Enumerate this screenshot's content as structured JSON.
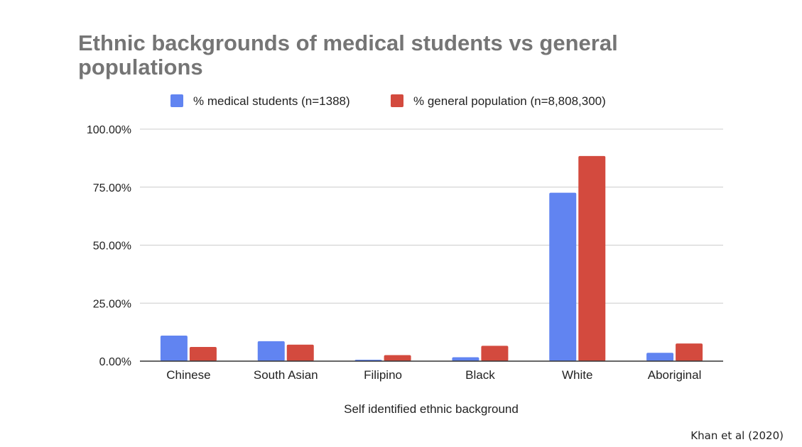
{
  "chart_data": {
    "type": "bar",
    "title": "Ethnic backgrounds of medical students vs general populations",
    "xlabel": "Self identified ethnic background",
    "ylabel": "",
    "ylim": [
      0,
      100
    ],
    "yticks": [
      "0.00%",
      "25.00%",
      "50.00%",
      "75.00%",
      "100.00%"
    ],
    "ytick_values": [
      0,
      25,
      50,
      75,
      100
    ],
    "grid": true,
    "legend_position": "top",
    "categories": [
      "Chinese",
      "South Asian",
      "Filipino",
      "Black",
      "White",
      "Aboriginal"
    ],
    "series": [
      {
        "name": "% medical students (n=1388)",
        "color": "#6184f1",
        "values": [
          11.0,
          8.6,
          0.6,
          1.7,
          72.6,
          3.6
        ]
      },
      {
        "name": "% general population (n=8,808,300)",
        "color": "#d34a3e",
        "values": [
          6.1,
          7.1,
          2.6,
          6.6,
          88.4,
          7.6
        ]
      }
    ]
  },
  "source_note": "Khan et al (2020)"
}
